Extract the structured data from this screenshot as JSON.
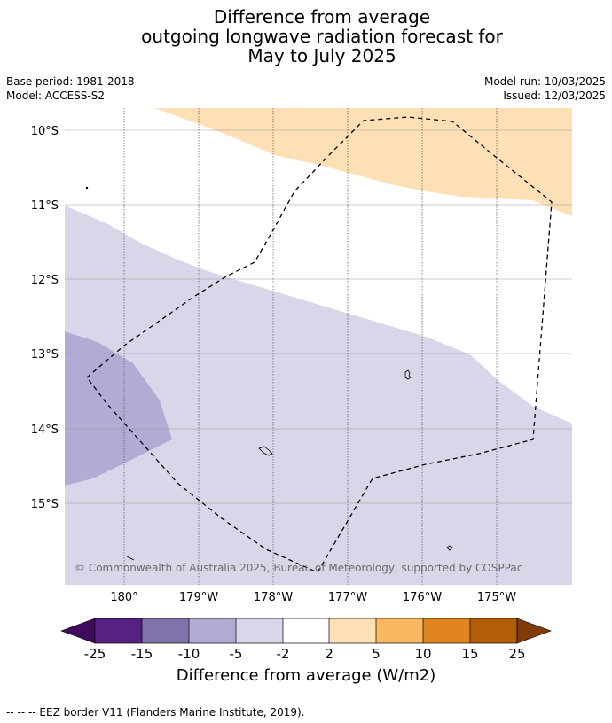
{
  "title": {
    "line1": "Difference from average",
    "line2": "outgoing longwave radiation forecast for",
    "line3": "May to July 2025"
  },
  "meta": {
    "base_period": "Base period: 1981-2018",
    "model": "Model: ACCESS-S2",
    "model_run": "Model run: 10/03/2025",
    "issued": "Issued: 12/03/2025"
  },
  "map": {
    "lat_labels": [
      "10°S",
      "11°S",
      "12°S",
      "13°S",
      "14°S",
      "15°S"
    ],
    "lon_labels": [
      "180°",
      "179°W",
      "178°W",
      "177°W",
      "176°W",
      "175°W"
    ],
    "copyright": "© Commonwealth of Australia 2025, Bureau of Meteorology, supported by COSPPac",
    "colors": {
      "light_orange": "#fde0b5",
      "light_purple": "#d7d7e9",
      "medium_purple": "#b1acd4"
    }
  },
  "colorbar": {
    "ticks": [
      "-25",
      "-15",
      "-10",
      "-5",
      "-2",
      "2",
      "5",
      "10",
      "15",
      "25"
    ],
    "colors": [
      "#3f0a5b",
      "#572184",
      "#8073ac",
      "#b1acd4",
      "#d7d7e9",
      "#ffffff",
      "#fde0b5",
      "#fbb862",
      "#e18521",
      "#b45d09",
      "#7f3b08"
    ],
    "label": "Difference from average (W/m2)"
  },
  "footer": "--  --  -- EEZ border V11 (Flanders Marine Institute, 2019)."
}
